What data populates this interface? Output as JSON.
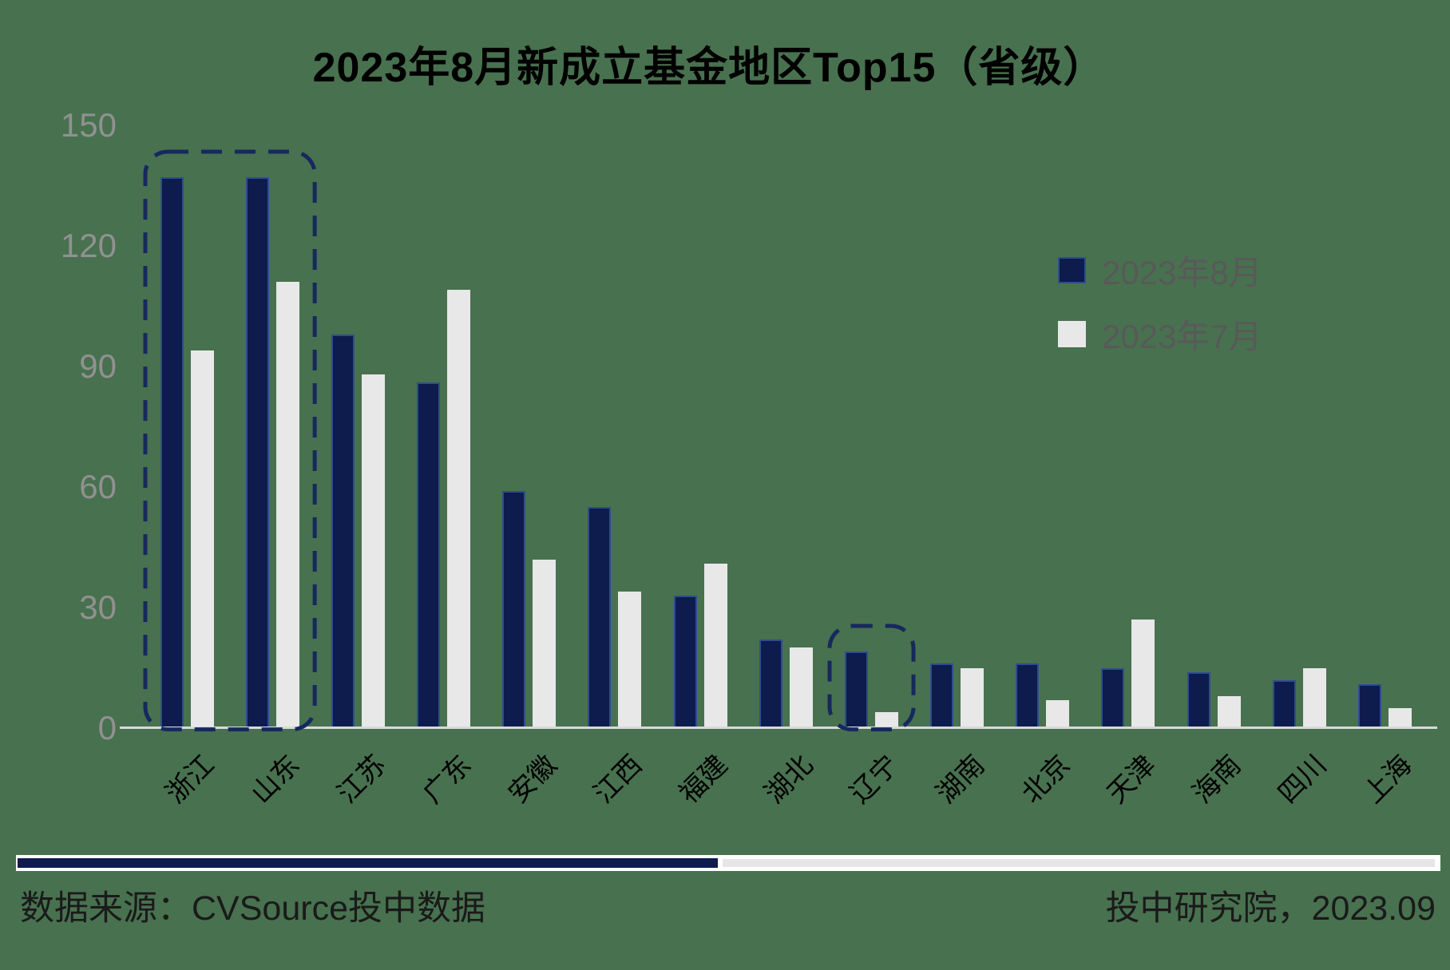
{
  "title": "2023年8月新成立基金地区Top15（省级）",
  "legend": {
    "items": [
      {
        "label": "2023年8月",
        "color": "#0D1B4D"
      },
      {
        "label": "2023年7月",
        "color": "#E8E8E8"
      }
    ]
  },
  "chart_data": {
    "type": "bar",
    "categories": [
      "浙江",
      "山东",
      "江苏",
      "广东",
      "安徽",
      "江西",
      "福建",
      "湖北",
      "辽宁",
      "湖南",
      "北京",
      "天津",
      "海南",
      "四川",
      "上海"
    ],
    "series": [
      {
        "name": "2023年8月",
        "color": "#0D1B4D",
        "values": [
          137,
          137,
          98,
          86,
          59,
          55,
          33,
          22,
          19,
          16,
          16,
          15,
          14,
          12,
          11
        ]
      },
      {
        "name": "2023年7月",
        "color": "#E8E8E8",
        "values": [
          94,
          111,
          88,
          109,
          42,
          34,
          41,
          20,
          4,
          15,
          7,
          27,
          8,
          15,
          5
        ]
      }
    ],
    "ylim": [
      0,
      150
    ],
    "yticks": [
      0,
      30,
      60,
      90,
      120,
      150
    ],
    "grid": false,
    "legend_position": "upper-right",
    "highlights": [
      {
        "from": "浙江",
        "to": "山东"
      },
      {
        "from": "辽宁",
        "to": "辽宁"
      }
    ]
  },
  "footer": {
    "source": "数据来源：CVSource投中数据",
    "credit": "投中研究院，2023.09"
  },
  "colors": {
    "background": "#48714F",
    "series_aug": "#0D1B4D",
    "series_aug_border": "#2E4D8F",
    "series_jul": "#E8E8E8",
    "highlight_dash": "#16295E",
    "axis_line": "#D9D9D9",
    "tick_text": "#919191",
    "legend_text": "#595959",
    "title_text": "#000000",
    "x_label_text": "#000000",
    "footer_text": "#1A1A1A",
    "divider_left": "#0D1B4D",
    "divider_right": "#E6E6E6",
    "divider_backing": "#FFFFFF"
  }
}
